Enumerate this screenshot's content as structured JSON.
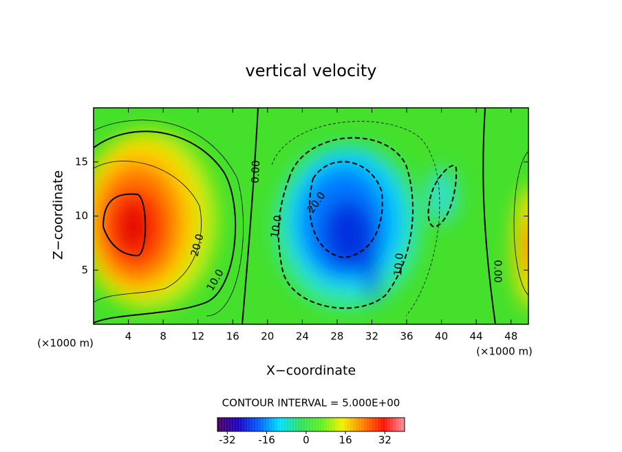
{
  "chart_data": {
    "type": "contour",
    "title": "vertical velocity",
    "x_label": "X−coordinate",
    "y_label": "Z−coordinate",
    "x_unit_label": "(×1000 m)",
    "x_unit_label_right": "(×1000 m)",
    "xlim": [
      0,
      50
    ],
    "xticks": [
      4,
      8,
      12,
      16,
      20,
      24,
      28,
      32,
      36,
      40,
      44,
      48
    ],
    "ylim": [
      0,
      20
    ],
    "yticks": [
      5,
      10,
      15
    ],
    "contour_interval_label": "CONTOUR INTERVAL = 5.000E+00",
    "contour_labels": [
      "20.0",
      "10.0",
      "0.00",
      "10.0",
      "20.0",
      "10.0",
      "0.00"
    ],
    "colorbar": {
      "lim": [
        -36,
        40
      ],
      "ticks": [
        -32,
        -16,
        0,
        16,
        32
      ],
      "colors": [
        "#4a0060",
        "#1a00c0",
        "#0060ff",
        "#00e0ff",
        "#30e060",
        "#60f020",
        "#f0f000",
        "#ff8000",
        "#ff1000",
        "#ff90a0"
      ]
    }
  }
}
